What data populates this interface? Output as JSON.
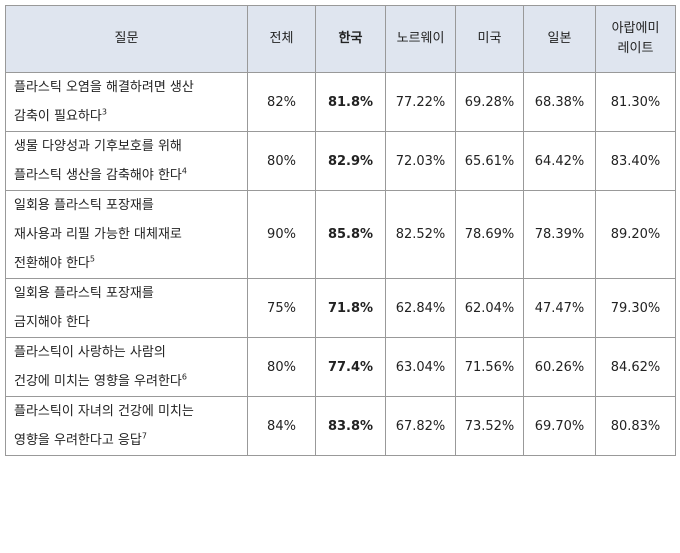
{
  "table": {
    "header": [
      "질문",
      "전체",
      "한국",
      "노르웨이",
      "미국",
      "일본",
      [
        "아랍에미",
        "레이트"
      ]
    ],
    "rows": [
      {
        "question": [
          "플라스틱 오염을 해결하려면 생산",
          "감축이 필요하다"
        ],
        "note": "3",
        "values": [
          "82%",
          "81.8%",
          "77.22%",
          "69.28%",
          "68.38%",
          "81.30%"
        ]
      },
      {
        "question": [
          "생물 다양성과 기후보호를 위해",
          "플라스틱 생산을 감축해야 한다"
        ],
        "note": "4",
        "values": [
          "80%",
          "82.9%",
          "72.03%",
          "65.61%",
          "64.42%",
          "83.40%"
        ]
      },
      {
        "question": [
          "일회용 플라스틱 포장재를",
          "재사용과 리필 가능한 대체재로",
          "전환해야 한다"
        ],
        "note": "5",
        "values": [
          "90%",
          "85.8%",
          "82.52%",
          "78.69%",
          "78.39%",
          "89.20%"
        ]
      },
      {
        "question": [
          "일회용 플라스틱 포장재를",
          "금지해야 한다"
        ],
        "note": null,
        "values": [
          "75%",
          "71.8%",
          "62.84%",
          "62.04%",
          "47.47%",
          "79.30%"
        ]
      },
      {
        "question": [
          "플라스틱이 사랑하는 사람의",
          "건강에 미치는 영향을 우려한다"
        ],
        "note": "6",
        "values": [
          "80%",
          "77.4%",
          "63.04%",
          "71.56%",
          "60.26%",
          "84.62%"
        ]
      },
      {
        "question": [
          "플라스틱이 자녀의 건강에 미치는",
          "영향을 우려한다고 응답"
        ],
        "note": "7",
        "values": [
          "84%",
          "83.8%",
          "67.82%",
          "73.52%",
          "69.70%",
          "80.83%"
        ]
      }
    ]
  }
}
